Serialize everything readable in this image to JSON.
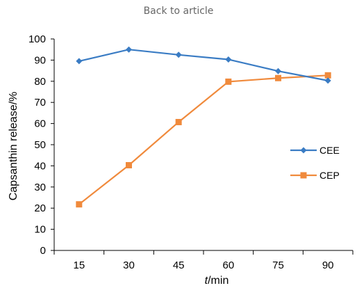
{
  "header": {
    "back_link": "Back to article"
  },
  "chart_data": {
    "type": "line",
    "title": "",
    "xlabel_italic": "t",
    "xlabel_rest": "/min",
    "ylabel": "Capsanthin release/%",
    "categories": [
      "15",
      "30",
      "45",
      "60",
      "75",
      "90"
    ],
    "ylim": [
      0,
      100
    ],
    "yticks": [
      "0",
      "10",
      "20",
      "30",
      "40",
      "50",
      "60",
      "70",
      "80",
      "90",
      "100"
    ],
    "grid": false,
    "legend_position": "right",
    "series": [
      {
        "name": "CEE",
        "values": [
          89.5,
          95,
          92.5,
          90.3,
          84.8,
          80.3
        ],
        "color": "#3a7cc4",
        "marker": "diamond"
      },
      {
        "name": "CEP",
        "values": [
          21.8,
          40.3,
          60.7,
          79.8,
          81.5,
          82.8
        ],
        "color": "#f08a3c",
        "marker": "square"
      }
    ]
  }
}
